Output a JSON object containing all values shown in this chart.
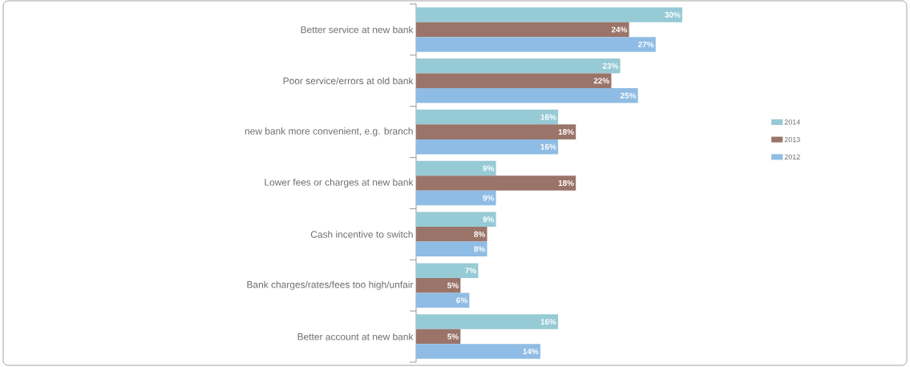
{
  "chart_data": {
    "type": "bar",
    "orientation": "horizontal",
    "categories": [
      "Better service at new bank",
      "Poor service/errors at old bank",
      "new bank more convenient, e.g. branch",
      "Lower fees or charges at new bank",
      "Cash incentive to switch",
      "Bank charges/rates/fees too high/unfair",
      "Better account at new bank"
    ],
    "series": [
      {
        "name": "2014",
        "color": "#96cad5",
        "values": [
          30,
          23,
          16,
          9,
          9,
          7,
          16
        ],
        "value_labels": [
          "30%",
          "23%",
          "16%",
          "9%",
          "9%",
          "7%",
          "16%"
        ]
      },
      {
        "name": "2013",
        "color": "#9a7469",
        "values": [
          24,
          22,
          18,
          18,
          8,
          5,
          5
        ],
        "value_labels": [
          "24%",
          "22%",
          "18%",
          "18%",
          "8%",
          "5%",
          "5%"
        ]
      },
      {
        "name": "2012",
        "color": "#8fbce4",
        "values": [
          27,
          25,
          16,
          9,
          8,
          6,
          14
        ],
        "value_labels": [
          "27%",
          "25%",
          "16%",
          "9%",
          "8%",
          "6%",
          "14%"
        ]
      }
    ],
    "data_labels": true,
    "legend": "right"
  }
}
